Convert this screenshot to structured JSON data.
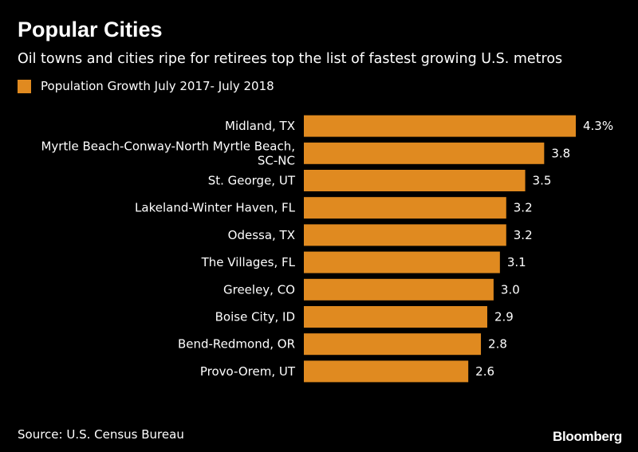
{
  "header": {
    "title": "Popular Cities",
    "subtitle": "Oil towns and cities ripe for retirees top the list of fastest growing U.S. metros"
  },
  "legend": {
    "label": "Population Growth July 2017- July 2018"
  },
  "footer": {
    "source": "Source: U.S. Census Bureau",
    "brand": "Bloomberg"
  },
  "colors": {
    "bar": "#E08A20",
    "background": "#000000",
    "text": "#FFFFFF"
  },
  "chart_data": {
    "type": "bar",
    "orientation": "horizontal",
    "title": "Popular Cities",
    "subtitle": "Oil towns and cities ripe for retirees top the list of fastest growing U.S. metros",
    "categories": [
      [
        "Midland, TX"
      ],
      [
        "Myrtle Beach-Conway-North Myrtle Beach,",
        "SC-NC"
      ],
      [
        "St. George, UT"
      ],
      [
        "Lakeland-Winter Haven, FL"
      ],
      [
        "Odessa, TX"
      ],
      [
        "The Villages, FL"
      ],
      [
        "Greeley, CO"
      ],
      [
        "Boise City, ID"
      ],
      [
        "Bend-Redmond, OR"
      ],
      [
        "Provo-Orem, UT"
      ]
    ],
    "values": [
      4.3,
      3.8,
      3.5,
      3.2,
      3.2,
      3.1,
      3.0,
      2.9,
      2.8,
      2.6
    ],
    "value_labels": [
      "4.3%",
      "3.8",
      "3.5",
      "3.2",
      "3.2",
      "3.1",
      "3.0",
      "2.9",
      "2.8",
      "2.6"
    ],
    "series": [
      {
        "name": "Population Growth July 2017- July 2018",
        "values": [
          4.3,
          3.8,
          3.5,
          3.2,
          3.2,
          3.1,
          3.0,
          2.9,
          2.8,
          2.6
        ]
      }
    ],
    "xlim": [
      0,
      4.3
    ],
    "grid": false,
    "legend_position": "top-left"
  }
}
